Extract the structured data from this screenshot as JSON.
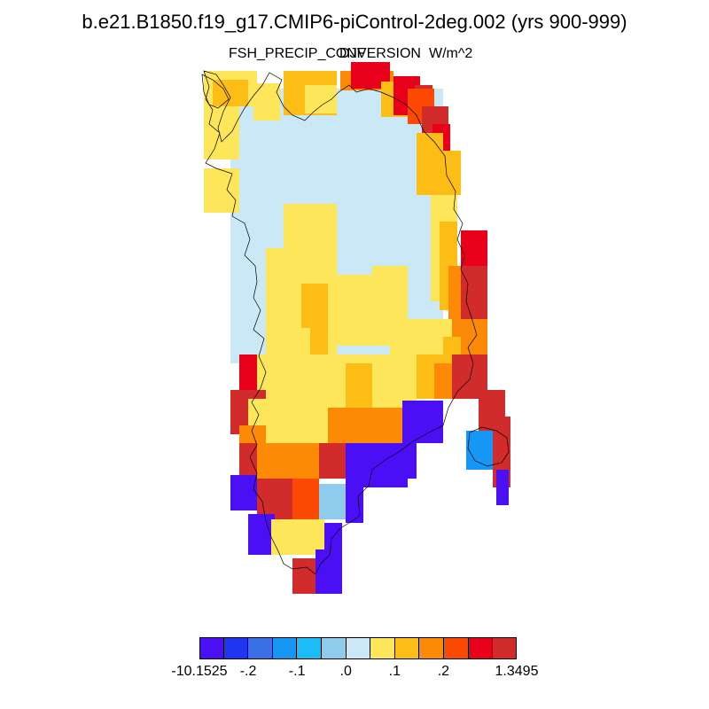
{
  "title": "b.e21.B1850.f19_g17.CMIP6-piControl-2deg.002 (yrs 900-999)",
  "subtitle": {
    "variable": "FSH_PRECIP_CONVERSION",
    "season": "DJF",
    "units": "W/m^2"
  },
  "colorbar": {
    "colors": [
      "#4b0ff5",
      "#1f35f2",
      "#3b6fe8",
      "#1797f5",
      "#1cbcf6",
      "#8fcbec",
      "#cbe8f6",
      "#fde659",
      "#fcbd17",
      "#fc8a06",
      "#fc4a05",
      "#e9001b",
      "#d22b2b"
    ],
    "labels": [
      "-10.1525",
      "-.2",
      "-.1",
      ".0",
      ".1",
      ".2",
      "1.3495"
    ]
  }
}
